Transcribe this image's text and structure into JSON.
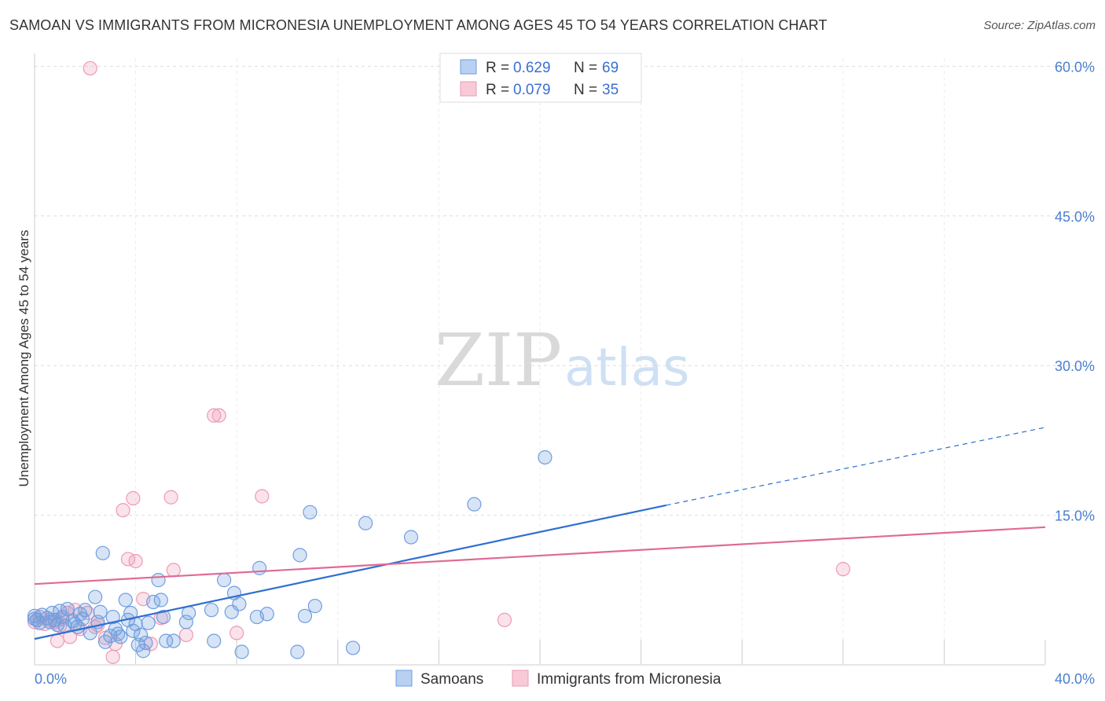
{
  "title": "SAMOAN VS IMMIGRANTS FROM MICRONESIA UNEMPLOYMENT AMONG AGES 45 TO 54 YEARS CORRELATION CHART",
  "source": "Source: ZipAtlas.com",
  "watermark": {
    "zip": "ZIP",
    "atlas": "atlas"
  },
  "legend": {
    "samoans": {
      "r_label": "R =",
      "r_value": "0.629",
      "n_label": "N =",
      "n_value": "69"
    },
    "micronesia": {
      "r_label": "R =",
      "r_value": "0.079",
      "n_label": "N =",
      "n_value": "35"
    }
  },
  "chart_data": {
    "type": "scatter",
    "xlabel": "",
    "ylabel": "Unemployment Among Ages 45 to 54 years",
    "xlim": [
      0,
      40
    ],
    "ylim": [
      0,
      62
    ],
    "x_tick_labels": [
      "0.0%",
      "40.0%"
    ],
    "y_ticks": [
      15,
      30,
      45,
      60
    ],
    "y_tick_labels": [
      "15.0%",
      "30.0%",
      "45.0%",
      "60.0%"
    ],
    "grid": true,
    "legend_position": "bottom-center",
    "colors": {
      "samoans": "#6f9ee0",
      "micronesia": "#ee9ab5",
      "samoans_line": "#2f6fd0",
      "micronesia_line": "#e06a96"
    },
    "series": [
      {
        "name": "Samoans",
        "points": [
          [
            0.0,
            4.9
          ],
          [
            0.1,
            4.5
          ],
          [
            0.2,
            4.2
          ],
          [
            0.3,
            5.0
          ],
          [
            0.5,
            4.7
          ],
          [
            0.6,
            4.3
          ],
          [
            0.7,
            5.2
          ],
          [
            0.9,
            4.0
          ],
          [
            1.0,
            5.4
          ],
          [
            1.1,
            4.8
          ],
          [
            1.2,
            3.9
          ],
          [
            1.3,
            5.6
          ],
          [
            1.5,
            4.4
          ],
          [
            1.6,
            4.1
          ],
          [
            1.7,
            3.8
          ],
          [
            1.8,
            5.1
          ],
          [
            1.9,
            4.6
          ],
          [
            2.0,
            5.5
          ],
          [
            2.2,
            3.2
          ],
          [
            2.4,
            6.8
          ],
          [
            2.5,
            4.3
          ],
          [
            2.6,
            5.3
          ],
          [
            2.7,
            11.2
          ],
          [
            2.8,
            2.3
          ],
          [
            3.0,
            2.9
          ],
          [
            3.1,
            4.8
          ],
          [
            3.2,
            3.6
          ],
          [
            3.3,
            3.1
          ],
          [
            3.4,
            2.8
          ],
          [
            3.6,
            6.5
          ],
          [
            3.7,
            4.5
          ],
          [
            3.8,
            5.2
          ],
          [
            3.9,
            3.4
          ],
          [
            4.0,
            4.1
          ],
          [
            4.1,
            2.0
          ],
          [
            4.2,
            3.0
          ],
          [
            4.3,
            1.4
          ],
          [
            4.4,
            2.2
          ],
          [
            4.5,
            4.2
          ],
          [
            4.7,
            6.3
          ],
          [
            4.9,
            8.5
          ],
          [
            5.0,
            6.5
          ],
          [
            5.1,
            4.8
          ],
          [
            5.2,
            2.4
          ],
          [
            5.5,
            2.4
          ],
          [
            6.0,
            4.3
          ],
          [
            6.1,
            5.2
          ],
          [
            7.0,
            5.5
          ],
          [
            7.1,
            2.4
          ],
          [
            7.5,
            8.5
          ],
          [
            7.8,
            5.3
          ],
          [
            7.9,
            7.2
          ],
          [
            8.1,
            6.1
          ],
          [
            8.2,
            1.3
          ],
          [
            8.8,
            4.8
          ],
          [
            8.9,
            9.7
          ],
          [
            9.2,
            5.1
          ],
          [
            10.4,
            1.3
          ],
          [
            10.5,
            11.0
          ],
          [
            10.7,
            4.9
          ],
          [
            10.9,
            15.3
          ],
          [
            11.1,
            5.9
          ],
          [
            12.6,
            1.7
          ],
          [
            13.1,
            14.2
          ],
          [
            14.9,
            12.8
          ],
          [
            17.4,
            16.1
          ],
          [
            20.2,
            20.8
          ],
          [
            0.0,
            4.6
          ],
          [
            0.8,
            4.5
          ]
        ]
      },
      {
        "name": "Immigrants from Micronesia",
        "points": [
          [
            0.0,
            4.3
          ],
          [
            0.2,
            4.8
          ],
          [
            0.4,
            4.1
          ],
          [
            0.6,
            4.5
          ],
          [
            0.8,
            4.3
          ],
          [
            0.9,
            2.4
          ],
          [
            1.0,
            3.9
          ],
          [
            1.1,
            4.6
          ],
          [
            1.3,
            5.2
          ],
          [
            1.4,
            2.8
          ],
          [
            1.6,
            5.5
          ],
          [
            1.8,
            3.6
          ],
          [
            2.1,
            5.2
          ],
          [
            2.2,
            59.8
          ],
          [
            2.4,
            3.8
          ],
          [
            2.5,
            4.0
          ],
          [
            2.8,
            2.7
          ],
          [
            3.1,
            0.8
          ],
          [
            3.2,
            2.1
          ],
          [
            3.5,
            15.5
          ],
          [
            3.7,
            10.6
          ],
          [
            3.9,
            16.7
          ],
          [
            4.0,
            10.4
          ],
          [
            4.3,
            6.6
          ],
          [
            4.6,
            2.1
          ],
          [
            5.0,
            4.7
          ],
          [
            5.4,
            16.8
          ],
          [
            5.5,
            9.5
          ],
          [
            6.0,
            3.0
          ],
          [
            7.1,
            25.0
          ],
          [
            7.3,
            25.0
          ],
          [
            8.0,
            3.2
          ],
          [
            9.0,
            16.9
          ],
          [
            18.6,
            4.5
          ],
          [
            32.0,
            9.6
          ]
        ]
      }
    ],
    "trendlines": [
      {
        "series": "Samoans",
        "from": [
          0,
          2.6
        ],
        "to": [
          25,
          16.0
        ],
        "extend_dashed_to": [
          40,
          23.8
        ]
      },
      {
        "series": "Immigrants from Micronesia",
        "from": [
          0,
          8.1
        ],
        "to": [
          40,
          13.8
        ]
      }
    ]
  },
  "bottom_legend": {
    "samoans": "Samoans",
    "micronesia": "Immigrants from Micronesia"
  }
}
